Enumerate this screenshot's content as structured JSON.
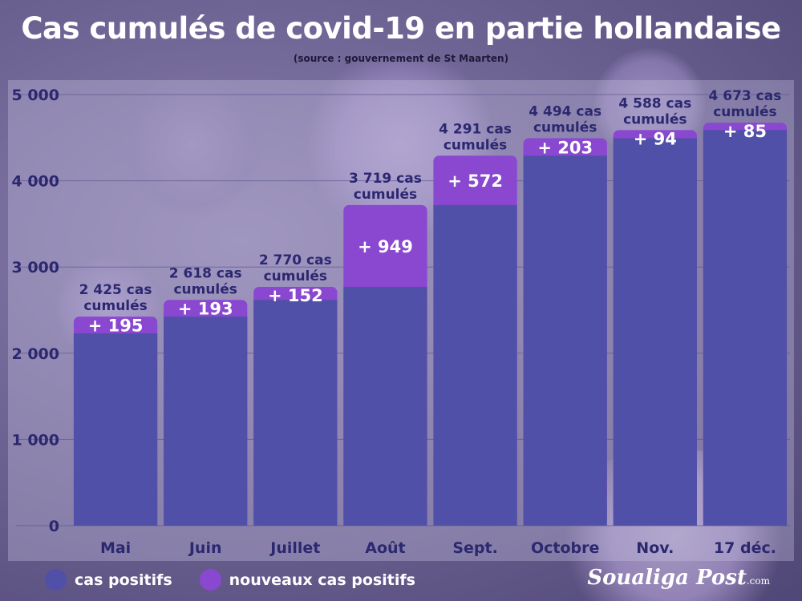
{
  "title": "Cas cumulés de covid-19 en partie hollandaise",
  "subtitle": "(source : gouvernement de St Maarten)",
  "colors": {
    "base": "#5150a8",
    "increment": "#8a47d0",
    "title": "#ffffff",
    "axis_text": "#2b2870"
  },
  "legend": [
    {
      "label": "cas positifs",
      "color": "#5150a8"
    },
    {
      "label": "nouveaux cas positifs",
      "color": "#8a47d0"
    }
  ],
  "logo": {
    "main": "Soualiga Post",
    "suffix": ".com"
  },
  "chart_data": {
    "type": "bar",
    "stacked": true,
    "categories": [
      "Mai",
      "Juin",
      "Juillet",
      "Août",
      "Sept.",
      "Octobre",
      "Nov.",
      "17 déc."
    ],
    "series": [
      {
        "name": "cas positifs",
        "values": [
          2230,
          2425,
          2618,
          2770,
          3719,
          4291,
          4494,
          4588
        ]
      },
      {
        "name": "nouveaux cas positifs",
        "values": [
          195,
          193,
          152,
          949,
          572,
          203,
          94,
          85
        ]
      }
    ],
    "increment_labels": [
      "+ 195",
      "+ 193",
      "+ 152",
      "+ 949",
      "+ 572",
      "+ 203",
      "+ 94",
      "+ 85"
    ],
    "total_labels": [
      [
        "2 425 cas",
        "cumulés"
      ],
      [
        "2 618 cas",
        "cumulés"
      ],
      [
        "2 770 cas",
        "cumulés"
      ],
      [
        "3  719 cas",
        "cumulés"
      ],
      [
        "4 291 cas",
        "cumulés"
      ],
      [
        "4 494 cas",
        "cumulés"
      ],
      [
        "4 588 cas",
        "cumulés"
      ],
      [
        "4 673 cas",
        "cumulés"
      ]
    ],
    "ylim": [
      0,
      5000
    ],
    "yticks": [
      0,
      1000,
      2000,
      3000,
      4000,
      5000
    ],
    "ytick_labels": [
      "0",
      "1 000",
      "2 000",
      "3 000",
      "4 000",
      "5 000"
    ],
    "grid": true,
    "legend_position": "bottom-left"
  }
}
